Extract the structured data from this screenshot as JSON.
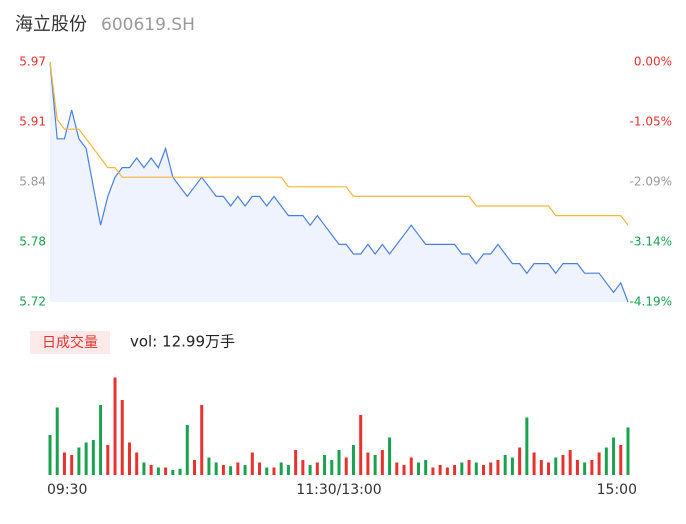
{
  "chart_data": {
    "type": "line",
    "title": "海立股份",
    "subtitle": "600619.SH",
    "xlim": [
      0,
      80
    ],
    "xticks": [
      {
        "value": 0,
        "label": "09:30"
      },
      {
        "value": 40,
        "label": "11:30/13:00"
      },
      {
        "value": 80,
        "label": "15:00"
      }
    ],
    "ylim": [
      5.72,
      5.97
    ],
    "yticks": [
      5.72,
      {
        "value": 5.7825,
        "label": "5.78"
      },
      {
        "value": 5.845,
        "label": "5.84"
      },
      {
        "value": 5.9075,
        "label": "5.91"
      },
      5.97
    ],
    "ytick_colors": [
      "#1aa14f",
      "#1aa14f",
      "#999999",
      "#e8322f",
      "#e8322f"
    ],
    "y2lim": [
      -4.19,
      0
    ],
    "y2ticks": [
      {
        "value": -4.19,
        "label": "-4.19%"
      },
      {
        "value": -3.1425,
        "label": "-3.14%"
      },
      {
        "value": -2.095,
        "label": "-2.09%"
      },
      {
        "value": -1.0475,
        "label": "-1.05%"
      },
      {
        "value": 0,
        "label": "0.00%"
      }
    ],
    "area_color": "#eef3fd",
    "series": [
      {
        "color": "#4a7fe0",
        "values": [
          5.97,
          5.89,
          5.89,
          5.92,
          5.89,
          5.88,
          5.84,
          5.8,
          5.83,
          5.85,
          5.86,
          5.86,
          5.87,
          5.86,
          5.87,
          5.86,
          5.88,
          5.85,
          5.84,
          5.83,
          5.84,
          5.85,
          5.84,
          5.83,
          5.83,
          5.82,
          5.83,
          5.82,
          5.83,
          5.83,
          5.82,
          5.83,
          5.82,
          5.81,
          5.81,
          5.81,
          5.8,
          5.81,
          5.8,
          5.79,
          5.78,
          5.78,
          5.77,
          5.77,
          5.78,
          5.77,
          5.78,
          5.77,
          5.78,
          5.79,
          5.8,
          5.79,
          5.78,
          5.78,
          5.78,
          5.78,
          5.78,
          5.77,
          5.77,
          5.76,
          5.77,
          5.77,
          5.78,
          5.77,
          5.76,
          5.76,
          5.75,
          5.76,
          5.76,
          5.76,
          5.75,
          5.76,
          5.76,
          5.76,
          5.75,
          5.75,
          5.75,
          5.74,
          5.73,
          5.74,
          5.72
        ]
      },
      {
        "color": "#f5b63a",
        "values": [
          5.97,
          5.91,
          5.9,
          5.9,
          5.9,
          5.89,
          5.88,
          5.87,
          5.86,
          5.86,
          5.85,
          5.85,
          5.85,
          5.85,
          5.85,
          5.85,
          5.85,
          5.85,
          5.85,
          5.85,
          5.85,
          5.85,
          5.85,
          5.85,
          5.85,
          5.85,
          5.85,
          5.85,
          5.85,
          5.85,
          5.85,
          5.85,
          5.85,
          5.84,
          5.84,
          5.84,
          5.84,
          5.84,
          5.84,
          5.84,
          5.84,
          5.84,
          5.83,
          5.83,
          5.83,
          5.83,
          5.83,
          5.83,
          5.83,
          5.83,
          5.83,
          5.83,
          5.83,
          5.83,
          5.83,
          5.83,
          5.83,
          5.83,
          5.83,
          5.82,
          5.82,
          5.82,
          5.82,
          5.82,
          5.82,
          5.82,
          5.82,
          5.82,
          5.82,
          5.82,
          5.81,
          5.81,
          5.81,
          5.81,
          5.81,
          5.81,
          5.81,
          5.81,
          5.81,
          5.81,
          5.8
        ]
      }
    ],
    "volume": {
      "title": "日成交量",
      "summary": "vol: 12.99万手",
      "ylim": [
        0,
        4000
      ],
      "up_color": "#e8322f",
      "down_color": "#1aa14f",
      "values": [
        1600,
        2700,
        900,
        800,
        1100,
        1300,
        1400,
        2800,
        1200,
        3900,
        3000,
        1300,
        900,
        500,
        400,
        300,
        300,
        200,
        250,
        2000,
        600,
        2800,
        700,
        500,
        400,
        350,
        500,
        400,
        900,
        500,
        300,
        300,
        500,
        400,
        1000,
        600,
        400,
        500,
        800,
        600,
        1000,
        700,
        1200,
        2400,
        900,
        800,
        1000,
        1500,
        500,
        400,
        700,
        500,
        600,
        300,
        400,
        300,
        400,
        500,
        600,
        500,
        400,
        500,
        600,
        800,
        700,
        1100,
        2300,
        900,
        600,
        500,
        700,
        800,
        1000,
        600,
        500,
        600,
        900,
        1100,
        1500,
        1200,
        1900
      ]
    }
  }
}
